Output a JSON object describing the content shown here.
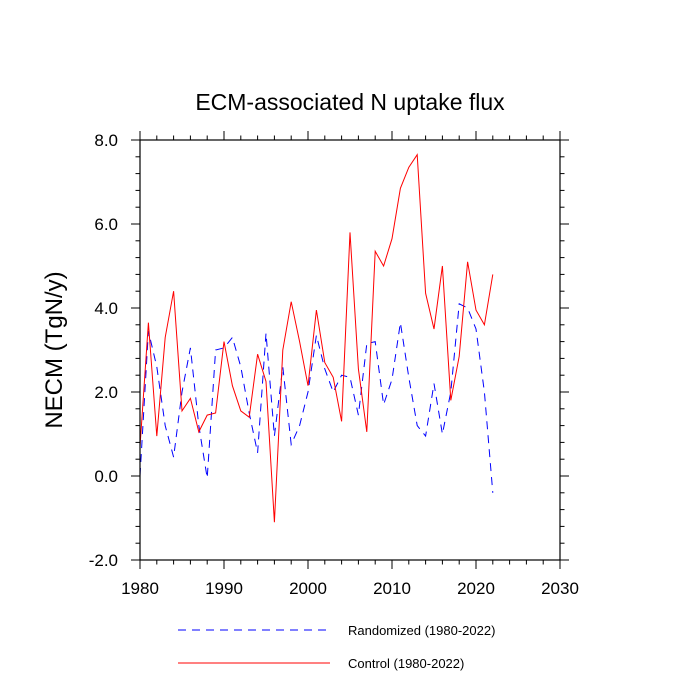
{
  "chart_data": {
    "type": "line",
    "title": "ECM-associated N uptake flux",
    "xlabel": "",
    "ylabel": "NECM  (TgN/y)",
    "xlim": [
      1980,
      2030
    ],
    "ylim": [
      -2.0,
      8.0
    ],
    "xticks": [
      1980,
      1990,
      2000,
      2010,
      2020,
      2030
    ],
    "xtick_labels": [
      "1980",
      "1990",
      "2000",
      "2010",
      "2020",
      "2030"
    ],
    "yticks": [
      -2.0,
      0.0,
      2.0,
      4.0,
      6.0,
      8.0
    ],
    "ytick_labels": [
      "-2.0",
      "0.0",
      "2.0",
      "4.0",
      "6.0",
      "8.0"
    ],
    "grid": false,
    "legend_position": "bottom",
    "x": [
      1980,
      1981,
      1982,
      1983,
      1984,
      1985,
      1986,
      1987,
      1988,
      1989,
      1990,
      1991,
      1992,
      1993,
      1994,
      1995,
      1996,
      1997,
      1998,
      1999,
      2000,
      2001,
      2002,
      2003,
      2004,
      2005,
      2006,
      2007,
      2008,
      2009,
      2010,
      2011,
      2012,
      2013,
      2014,
      2015,
      2016,
      2017,
      2018,
      2019,
      2020,
      2021,
      2022
    ],
    "series": [
      {
        "name": "Randomized (1980-2022)",
        "style": "dashed",
        "color": "#0000ff",
        "values": [
          0.0,
          3.45,
          2.6,
          1.2,
          0.45,
          2.0,
          3.05,
          1.2,
          -0.05,
          3.0,
          3.05,
          3.3,
          2.6,
          1.5,
          0.55,
          3.4,
          0.95,
          2.6,
          0.75,
          1.2,
          2.0,
          3.35,
          2.55,
          2.0,
          2.4,
          2.35,
          1.45,
          3.15,
          3.2,
          1.7,
          2.3,
          3.65,
          2.35,
          1.2,
          0.95,
          2.2,
          1.0,
          2.0,
          4.1,
          4.0,
          3.5,
          2.0,
          -0.4
        ]
      },
      {
        "name": "Control (1980-2022)",
        "style": "solid",
        "color": "#ff0000",
        "values": [
          0.7,
          3.65,
          0.95,
          3.3,
          4.4,
          1.55,
          1.85,
          1.05,
          1.45,
          1.5,
          3.2,
          2.15,
          1.55,
          1.4,
          2.9,
          2.25,
          -1.1,
          3.0,
          4.15,
          3.2,
          2.15,
          3.95,
          2.7,
          2.35,
          1.3,
          5.8,
          2.55,
          1.05,
          5.35,
          5.0,
          5.65,
          6.85,
          7.35,
          7.65,
          4.35,
          3.5,
          5.0,
          1.8,
          2.85,
          5.1,
          3.95,
          3.6,
          4.8
        ]
      }
    ]
  }
}
